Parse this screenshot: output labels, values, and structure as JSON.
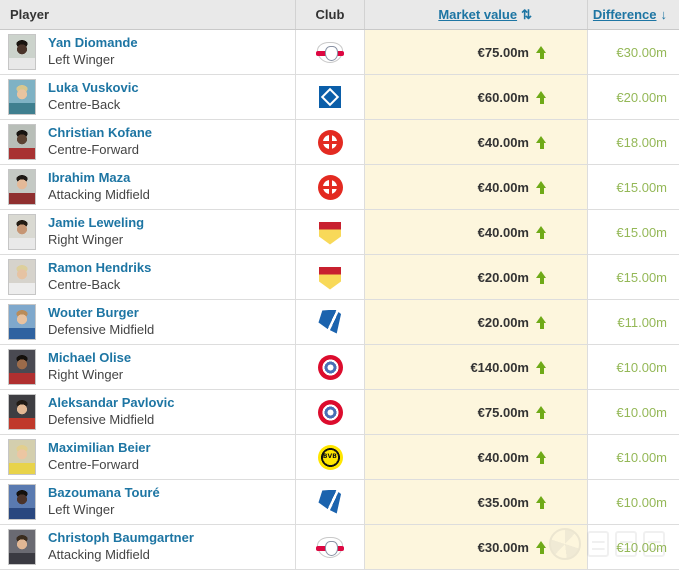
{
  "colors": {
    "link_blue": "#1d75a3",
    "header_bg": "#e9e9e9",
    "border": "#dddddd",
    "row_bg": "#ffffff",
    "market_value_bg": "#fdf6dd",
    "value_text": "#333333",
    "position_text": "#444444",
    "increase_green": "#6faa18",
    "difference_green": "#94b857",
    "header_text": "#333333"
  },
  "header": {
    "player": "Player",
    "club": "Club",
    "market_value": "Market value",
    "market_value_sort_icon": "⇅",
    "difference": "Difference",
    "difference_sort_icon": "↓"
  },
  "table": {
    "rows": [
      {
        "name": "Yan Diomande",
        "position": "Left Winger",
        "club_class": "leipzig",
        "club_icon": "rb-leipzig-crest-icon",
        "market_value": "€75.00m",
        "difference": "€30.00m",
        "photo": {
          "bg": "#ccd3cc",
          "hair": "#1a1410",
          "skin": "#4a342a",
          "shirt": "#e8e8e8"
        }
      },
      {
        "name": "Luka Vuskovic",
        "position": "Centre-Back",
        "club_class": "hamburg",
        "club_icon": "hamburger-sv-crest-icon",
        "market_value": "€60.00m",
        "difference": "€20.00m",
        "photo": {
          "bg": "#7fb2c4",
          "hair": "#d8c78e",
          "skin": "#e8c4a0",
          "shirt": "#3f7f8f"
        }
      },
      {
        "name": "Christian Kofane",
        "position": "Centre-Forward",
        "club_class": "leverkusen",
        "club_icon": "bayer-leverkusen-crest-icon",
        "market_value": "€40.00m",
        "difference": "€18.00m",
        "photo": {
          "bg": "#b8beb8",
          "hair": "#171310",
          "skin": "#5b4232",
          "shirt": "#a83232"
        }
      },
      {
        "name": "Ibrahim Maza",
        "position": "Attacking Midfield",
        "club_class": "leverkusen",
        "club_icon": "bayer-leverkusen-crest-icon",
        "market_value": "€40.00m",
        "difference": "€15.00m",
        "photo": {
          "bg": "#c4c9c4",
          "hair": "#1e1a16",
          "skin": "#e3b998",
          "shirt": "#8f2f2f"
        }
      },
      {
        "name": "Jamie Leweling",
        "position": "Right Winger",
        "club_class": "stuttgart",
        "club_icon": "vfb-stuttgart-crest-icon",
        "market_value": "€40.00m",
        "difference": "€15.00m",
        "photo": {
          "bg": "#d9d9d2",
          "hair": "#241c14",
          "skin": "#c69674",
          "shirt": "#e9e9e9"
        }
      },
      {
        "name": "Ramon Hendriks",
        "position": "Centre-Back",
        "club_class": "stuttgart",
        "club_icon": "vfb-stuttgart-crest-icon",
        "market_value": "€20.00m",
        "difference": "€15.00m",
        "photo": {
          "bg": "#d6d3cc",
          "hair": "#ddcf9c",
          "skin": "#e6c3a3",
          "shirt": "#ededed"
        }
      },
      {
        "name": "Wouter Burger",
        "position": "Defensive Midfield",
        "club_class": "hoffenheim",
        "club_icon": "tsg-hoffenheim-crest-icon",
        "market_value": "€20.00m",
        "difference": "€11.00m",
        "photo": {
          "bg": "#7fa8cc",
          "hair": "#b98c5a",
          "skin": "#e8c2a0",
          "shirt": "#2f62a0"
        }
      },
      {
        "name": "Michael Olise",
        "position": "Right Winger",
        "club_class": "bayern",
        "club_icon": "bayern-munich-crest-icon",
        "market_value": "€140.00m",
        "difference": "€10.00m",
        "photo": {
          "bg": "#4a4a52",
          "hair": "#14100c",
          "skin": "#9c6b4a",
          "shirt": "#b03030"
        }
      },
      {
        "name": "Aleksandar Pavlovic",
        "position": "Defensive Midfield",
        "club_class": "bayern",
        "club_icon": "bayern-munich-crest-icon",
        "market_value": "€75.00m",
        "difference": "€10.00m",
        "photo": {
          "bg": "#3e3e42",
          "hair": "#201a14",
          "skin": "#e2b894",
          "shirt": "#c0392b"
        }
      },
      {
        "name": "Maximilian Beier",
        "position": "Centre-Forward",
        "club_class": "dortmund",
        "club_icon": "borussia-dortmund-crest-icon",
        "market_value": "€40.00m",
        "difference": "€10.00m",
        "photo": {
          "bg": "#d4cfae",
          "hair": "#e2cf8e",
          "skin": "#ecc6a2",
          "shirt": "#e8d34a"
        }
      },
      {
        "name": "Bazoumana Touré",
        "position": "Left Winger",
        "club_class": "hoffenheim",
        "club_icon": "tsg-hoffenheim-crest-icon",
        "market_value": "€35.00m",
        "difference": "€10.00m",
        "photo": {
          "bg": "#5a7ab0",
          "hair": "#14100c",
          "skin": "#4a332a",
          "shirt": "#29477f"
        }
      },
      {
        "name": "Christoph Baumgartner",
        "position": "Attacking Midfield",
        "club_class": "leipzig",
        "club_icon": "rb-leipzig-crest-icon",
        "market_value": "€30.00m",
        "difference": "€10.00m",
        "photo": {
          "bg": "#6a6a72",
          "hair": "#3a2c1e",
          "skin": "#e0b694",
          "shirt": "#3a3a42"
        }
      }
    ]
  }
}
